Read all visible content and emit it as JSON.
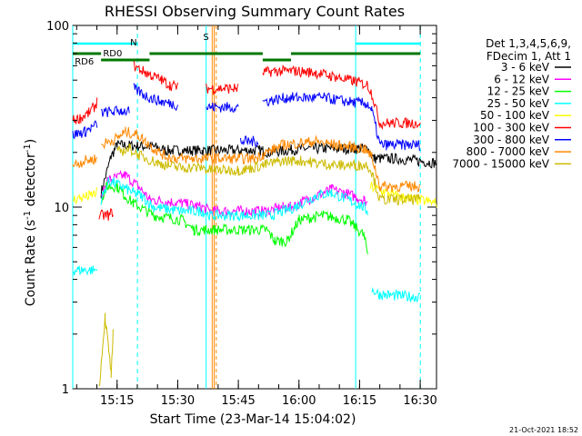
{
  "chart_data": {
    "type": "line",
    "title": "RHESSI Observing Summary Count Rates",
    "xlabel": "Start Time (23-Mar-14 15:04:02)",
    "ylabel_main": "Count Rate (s",
    "ylabel_sup": "-1",
    "ylabel_mid": " detector",
    "ylabel_end": ")",
    "y_scale": "log",
    "ylim": [
      1,
      100
    ],
    "xlim_minutes": [
      0,
      90
    ],
    "x_ticks": [
      {
        "label": "15:15",
        "min": 10.97
      },
      {
        "label": "15:30",
        "min": 25.97
      },
      {
        "label": "15:45",
        "min": 40.97
      },
      {
        "label": "16:00",
        "min": 55.97
      },
      {
        "label": "16:15",
        "min": 70.97
      },
      {
        "label": "16:30",
        "min": 85.97
      }
    ],
    "y_tick_labels": [
      {
        "label": "100",
        "value": 100
      },
      {
        "label": "10",
        "value": 10
      },
      {
        "label": "1",
        "value": 1
      }
    ],
    "legend_header": [
      "Det 1,3,4,5,6,9,",
      "FDecim 1, Att 1"
    ],
    "legend_position": "right",
    "series": [
      {
        "name": "3 - 6 keV",
        "color": "#000000",
        "segments": [
          [
            [
              7,
              12
            ],
            [
              9.5,
              19
            ],
            [
              11,
              22
            ],
            [
              20,
              21.5
            ],
            [
              23,
              20.5
            ],
            [
              32,
              20.5
            ],
            [
              33.5,
              20.5
            ],
            [
              47,
              20.5
            ],
            [
              48.5,
              20
            ],
            [
              57,
              21
            ],
            [
              59,
              21
            ],
            [
              73,
              21
            ],
            [
              74.5,
              18.5
            ],
            [
              80,
              18.5
            ],
            [
              90,
              17.5
            ]
          ]
        ]
      },
      {
        "name": "6 - 12 keV",
        "color": "#ff00ff",
        "segments": [
          [
            [
              7,
              11
            ],
            [
              8.5,
              14
            ],
            [
              13,
              15
            ],
            [
              17,
              12.5
            ],
            [
              19,
              11
            ],
            [
              27,
              10.5
            ],
            [
              32,
              10
            ],
            [
              34,
              9.5
            ],
            [
              47,
              9.5
            ],
            [
              48,
              9.5
            ],
            [
              52,
              10
            ],
            [
              54,
              10
            ],
            [
              60,
              11.5
            ],
            [
              64,
              12.5
            ],
            [
              67,
              12
            ],
            [
              72,
              11
            ],
            [
              73,
              10.5
            ]
          ]
        ]
      },
      {
        "name": "12 - 25 keV",
        "color": "#00ff00",
        "segments": [
          [
            [
              7,
              11
            ],
            [
              8.5,
              13
            ],
            [
              11,
              13
            ],
            [
              13,
              11.5
            ],
            [
              15,
              10.5
            ],
            [
              20,
              9
            ],
            [
              27,
              8.5
            ],
            [
              30,
              7.5
            ],
            [
              33,
              7.5
            ],
            [
              47,
              7.5
            ],
            [
              48,
              7.5
            ],
            [
              50,
              6.5
            ],
            [
              53,
              6.5
            ],
            [
              56,
              8.5
            ],
            [
              62,
              9
            ],
            [
              68,
              8.5
            ],
            [
              72,
              7
            ],
            [
              73,
              5.5
            ]
          ]
        ]
      },
      {
        "name": "25 - 50 keV",
        "color": "#00ffff",
        "segments": [
          [
            [
              0,
              4.5
            ],
            [
              6,
              4.5
            ]
          ],
          [
            [
              7,
              11
            ],
            [
              9,
              14
            ],
            [
              12,
              13
            ],
            [
              15,
              12
            ],
            [
              17,
              11.5
            ],
            [
              20,
              10
            ],
            [
              27,
              9.5
            ],
            [
              32,
              9.5
            ],
            [
              34,
              9
            ],
            [
              47,
              9
            ],
            [
              49,
              9
            ],
            [
              55,
              10
            ],
            [
              60,
              11.5
            ],
            [
              64,
              12
            ],
            [
              68,
              11
            ],
            [
              72,
              10
            ],
            [
              73,
              9.5
            ]
          ],
          [
            [
              74,
              3.5
            ],
            [
              76,
              3.3
            ],
            [
              85,
              3.2
            ],
            [
              86,
              3.2
            ]
          ]
        ]
      },
      {
        "name": "50 - 100 keV",
        "color": "#ffff00",
        "segments": [
          [
            [
              0,
              11
            ],
            [
              4,
              11.5
            ],
            [
              6,
              12
            ]
          ],
          [
            [
              73.5,
              13
            ],
            [
              80,
              11.5
            ],
            [
              90,
              10.5
            ]
          ]
        ]
      },
      {
        "name": "100 - 300 keV",
        "color": "#ff0000",
        "segments": [
          [
            [
              0,
              30
            ],
            [
              2,
              31
            ],
            [
              4,
              33
            ],
            [
              5.5,
              36
            ],
            [
              6,
              38
            ]
          ],
          [
            [
              6.5,
              9
            ],
            [
              9,
              9
            ],
            [
              10,
              9.5
            ]
          ],
          [
            [
              15,
              60
            ],
            [
              18,
              55
            ],
            [
              22,
              50
            ],
            [
              24,
              47
            ],
            [
              26,
              46
            ]
          ],
          [
            [
              33,
              45
            ],
            [
              41,
              45
            ]
          ],
          [
            [
              47,
              55
            ],
            [
              50,
              56
            ],
            [
              55,
              56
            ],
            [
              60,
              55
            ],
            [
              65,
              52
            ],
            [
              70,
              49
            ],
            [
              73,
              47
            ],
            [
              74,
              42
            ],
            [
              76,
              29
            ],
            [
              81,
              29
            ],
            [
              86,
              29
            ]
          ]
        ]
      },
      {
        "name": "300 - 800 keV",
        "color": "#0000ff",
        "segments": [
          [
            [
              0,
              25
            ],
            [
              3,
              26
            ],
            [
              6,
              28.5
            ]
          ],
          [
            [
              7,
              33
            ],
            [
              12,
              34
            ],
            [
              14,
              33.5
            ]
          ],
          [
            [
              15,
              45
            ],
            [
              19,
              40
            ],
            [
              22,
              38
            ],
            [
              26,
              36.5
            ]
          ],
          [
            [
              33,
              35.5
            ],
            [
              41,
              35.5
            ]
          ],
          [
            [
              41.5,
              23
            ],
            [
              46,
              23
            ]
          ],
          [
            [
              47,
              38
            ],
            [
              53,
              40
            ],
            [
              62,
              40
            ],
            [
              68,
              38
            ],
            [
              73,
              37
            ],
            [
              74,
              34
            ],
            [
              76,
              22
            ],
            [
              86,
              22
            ]
          ]
        ]
      },
      {
        "name": "800 - 7000 keV",
        "color": "#ff8800",
        "segments": [
          [
            [
              0,
              17
            ],
            [
              3,
              18
            ],
            [
              6,
              18.5
            ]
          ],
          [
            [
              7,
              22
            ],
            [
              11,
              24
            ],
            [
              13,
              26
            ],
            [
              16,
              25
            ],
            [
              18,
              23
            ],
            [
              20,
              21
            ],
            [
              23,
              19
            ],
            [
              26,
              18.5
            ],
            [
              32,
              18.5
            ],
            [
              41,
              18.5
            ],
            [
              45,
              18.5
            ],
            [
              47,
              19.5
            ],
            [
              52,
              22
            ],
            [
              60,
              23
            ],
            [
              65,
              22
            ],
            [
              72,
              21
            ],
            [
              74,
              19
            ],
            [
              76,
              13
            ],
            [
              86,
              13
            ]
          ]
        ]
      },
      {
        "name": "7000 - 15000 keV",
        "color": "#ccbb00",
        "segments": [
          [
            [
              6.5,
              1
            ],
            [
              8,
              2.5
            ],
            [
              9.5,
              1.2
            ],
            [
              10,
              2
            ]
          ],
          [
            [
              11,
              20
            ],
            [
              14,
              21
            ],
            [
              17,
              19
            ],
            [
              21,
              17.5
            ],
            [
              26,
              16.5
            ],
            [
              32,
              16.5
            ],
            [
              33.5,
              16
            ],
            [
              41,
              16
            ],
            [
              42,
              16
            ],
            [
              47,
              17
            ],
            [
              52,
              18
            ],
            [
              57,
              18
            ],
            [
              60,
              17.5
            ],
            [
              66,
              17
            ],
            [
              70,
              17
            ],
            [
              73,
              17
            ],
            [
              74,
              15.5
            ],
            [
              76,
              11
            ],
            [
              86,
              11
            ]
          ]
        ]
      }
    ],
    "annotations": {
      "N": {
        "label": "N",
        "color": "#00ffff"
      },
      "S": {
        "label": "S",
        "color": "#ff8800"
      },
      "RD0": {
        "label": "RD0",
        "color": "#007700"
      },
      "RD6": {
        "label": "RD6",
        "color": "#007700"
      },
      "saa_vlines_solid": [
        0,
        33,
        70
      ],
      "saa_vlines_dashed": [
        16,
        86
      ],
      "saa_color": "#00ffff",
      "s_vlines": [
        34.5,
        35
      ],
      "s_color": "#ff8800",
      "s_vlines_dashed": [
        35.5
      ],
      "n_bars": [
        [
          0,
          16
        ],
        [
          70,
          86
        ]
      ],
      "green_top": [
        [
          19,
          47
        ],
        [
          54,
          86
        ]
      ],
      "green_top_short": [
        [
          47,
          54
        ]
      ],
      "green_low": [
        [
          0,
          7
        ]
      ],
      "green_mid": [
        [
          7,
          19
        ]
      ]
    },
    "grid": false
  },
  "footer": {
    "date_stamp": "21-Oct-2021 18:52"
  }
}
